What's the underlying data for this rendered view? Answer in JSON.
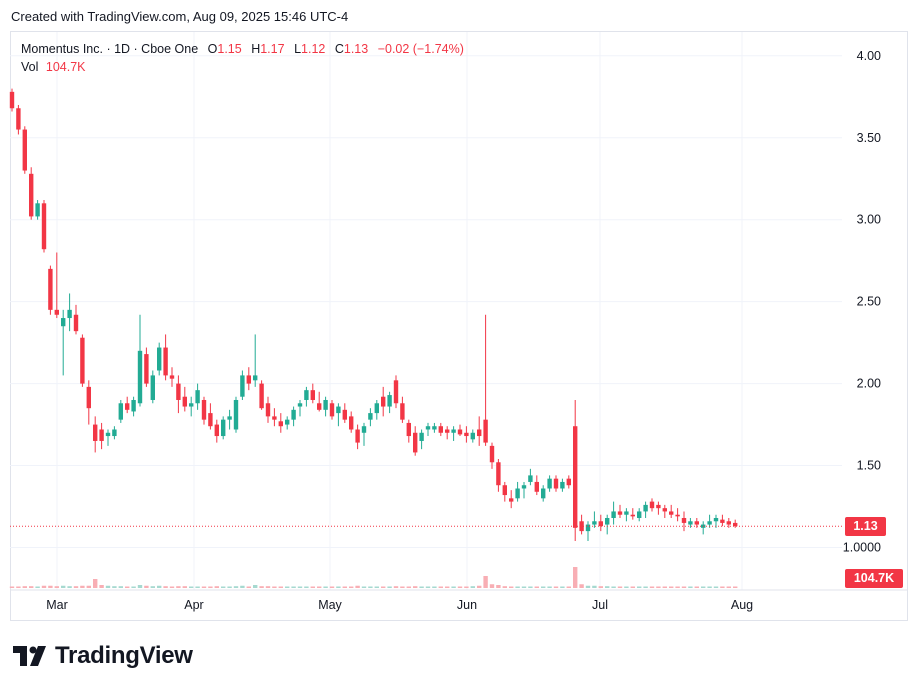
{
  "caption": "Created with TradingView.com, Aug 09, 2025 15:46 UTC-4",
  "legend": {
    "symbol": "Momentus Inc. · 1D · Cboe One",
    "open_label": "O",
    "open": "1.15",
    "high_label": "H",
    "high": "1.17",
    "low_label": "L",
    "low": "1.12",
    "close_label": "C",
    "close": "1.13",
    "change": "−0.02 (−1.74%)",
    "vol_label": "Vol",
    "vol": "104.7K"
  },
  "last_price_tag": "1.13",
  "last_volume_tag": "104.7K",
  "brand": "TradingView",
  "colors": {
    "up": "#22ab94",
    "down": "#f23645",
    "up_vol": "#a6d9d0",
    "down_vol": "#f8aeb4",
    "grid": "#f0f3fa",
    "text": "#131722"
  },
  "chart_data": {
    "type": "candlestick",
    "y_ticks": [
      "4.00",
      "3.50",
      "3.00",
      "2.50",
      "2.00",
      "1.50",
      "1.0000"
    ],
    "y_tick_values": [
      4.0,
      3.5,
      3.0,
      2.5,
      2.0,
      1.5,
      1.0
    ],
    "x_ticks": [
      "Mar",
      "Apr",
      "May",
      "Jun",
      "Jul",
      "Aug"
    ],
    "last_price": 1.13,
    "candles": [
      [
        3.78,
        3.8,
        3.66,
        3.68,
        10
      ],
      [
        3.68,
        3.7,
        3.52,
        3.55,
        10
      ],
      [
        3.55,
        3.57,
        3.28,
        3.3,
        12
      ],
      [
        3.28,
        3.32,
        3.0,
        3.02,
        12
      ],
      [
        3.02,
        3.12,
        3.0,
        3.1,
        10
      ],
      [
        3.1,
        3.12,
        2.8,
        2.82,
        15
      ],
      [
        2.7,
        2.72,
        2.42,
        2.45,
        15
      ],
      [
        2.45,
        2.8,
        2.4,
        2.42,
        12
      ],
      [
        2.35,
        2.45,
        2.05,
        2.4,
        15
      ],
      [
        2.4,
        2.55,
        2.32,
        2.45,
        12
      ],
      [
        2.42,
        2.48,
        2.3,
        2.32,
        12
      ],
      [
        2.28,
        2.3,
        1.98,
        2.0,
        15
      ],
      [
        1.98,
        2.02,
        1.75,
        1.85,
        15
      ],
      [
        1.75,
        1.8,
        1.58,
        1.65,
        60
      ],
      [
        1.72,
        1.76,
        1.6,
        1.65,
        20
      ],
      [
        1.68,
        1.72,
        1.62,
        1.7,
        15
      ],
      [
        1.68,
        1.74,
        1.66,
        1.72,
        12
      ],
      [
        1.78,
        1.9,
        1.76,
        1.88,
        12
      ],
      [
        1.88,
        1.92,
        1.82,
        1.84,
        10
      ],
      [
        1.83,
        1.92,
        1.8,
        1.9,
        10
      ],
      [
        1.88,
        2.42,
        1.86,
        2.2,
        20
      ],
      [
        2.18,
        2.22,
        1.98,
        2.0,
        15
      ],
      [
        1.9,
        2.08,
        1.88,
        2.05,
        12
      ],
      [
        2.08,
        2.25,
        2.05,
        2.22,
        15
      ],
      [
        2.22,
        2.3,
        2.02,
        2.05,
        12
      ],
      [
        2.05,
        2.1,
        1.98,
        2.03,
        10
      ],
      [
        2.0,
        2.05,
        1.82,
        1.9,
        12
      ],
      [
        1.92,
        1.98,
        1.83,
        1.86,
        12
      ],
      [
        1.86,
        1.92,
        1.8,
        1.88,
        10
      ],
      [
        1.88,
        2.0,
        1.84,
        1.96,
        10
      ],
      [
        1.9,
        1.92,
        1.75,
        1.78,
        10
      ],
      [
        1.82,
        1.88,
        1.72,
        1.74,
        10
      ],
      [
        1.75,
        1.78,
        1.64,
        1.68,
        12
      ],
      [
        1.68,
        1.8,
        1.66,
        1.78,
        10
      ],
      [
        1.78,
        1.84,
        1.72,
        1.8,
        10
      ],
      [
        1.72,
        1.92,
        1.7,
        1.9,
        12
      ],
      [
        1.92,
        2.08,
        1.9,
        2.05,
        15
      ],
      [
        2.05,
        2.1,
        1.96,
        2.0,
        10
      ],
      [
        2.02,
        2.3,
        1.98,
        2.05,
        20
      ],
      [
        2.0,
        2.02,
        1.84,
        1.85,
        12
      ],
      [
        1.88,
        1.92,
        1.76,
        1.8,
        12
      ],
      [
        1.8,
        1.85,
        1.74,
        1.78,
        10
      ],
      [
        1.77,
        1.82,
        1.7,
        1.74,
        10
      ],
      [
        1.75,
        1.8,
        1.72,
        1.78,
        10
      ],
      [
        1.78,
        1.86,
        1.74,
        1.84,
        10
      ],
      [
        1.86,
        1.9,
        1.8,
        1.88,
        10
      ],
      [
        1.9,
        1.98,
        1.86,
        1.96,
        10
      ],
      [
        1.96,
        2.0,
        1.88,
        1.9,
        10
      ],
      [
        1.88,
        1.95,
        1.83,
        1.84,
        10
      ],
      [
        1.84,
        1.92,
        1.8,
        1.9,
        10
      ],
      [
        1.88,
        1.9,
        1.78,
        1.8,
        10
      ],
      [
        1.82,
        1.88,
        1.74,
        1.86,
        10
      ],
      [
        1.84,
        1.88,
        1.76,
        1.78,
        10
      ],
      [
        1.8,
        1.83,
        1.7,
        1.72,
        10
      ],
      [
        1.72,
        1.75,
        1.6,
        1.64,
        15
      ],
      [
        1.7,
        1.76,
        1.62,
        1.74,
        10
      ],
      [
        1.78,
        1.85,
        1.74,
        1.82,
        10
      ],
      [
        1.82,
        1.9,
        1.78,
        1.88,
        10
      ],
      [
        1.92,
        1.98,
        1.8,
        1.86,
        10
      ],
      [
        1.86,
        1.95,
        1.82,
        1.93,
        10
      ],
      [
        2.02,
        2.05,
        1.85,
        1.88,
        12
      ],
      [
        1.88,
        1.92,
        1.76,
        1.78,
        10
      ],
      [
        1.76,
        1.78,
        1.64,
        1.68,
        10
      ],
      [
        1.7,
        1.74,
        1.56,
        1.58,
        12
      ],
      [
        1.65,
        1.72,
        1.6,
        1.7,
        10
      ],
      [
        1.72,
        1.76,
        1.68,
        1.74,
        10
      ],
      [
        1.72,
        1.76,
        1.7,
        1.74,
        10
      ],
      [
        1.74,
        1.76,
        1.68,
        1.7,
        10
      ],
      [
        1.72,
        1.74,
        1.66,
        1.7,
        10
      ],
      [
        1.7,
        1.74,
        1.65,
        1.72,
        10
      ],
      [
        1.72,
        1.75,
        1.68,
        1.69,
        10
      ],
      [
        1.7,
        1.74,
        1.64,
        1.68,
        10
      ],
      [
        1.66,
        1.72,
        1.64,
        1.7,
        12
      ],
      [
        1.72,
        1.8,
        1.62,
        1.68,
        15
      ],
      [
        1.78,
        2.42,
        1.62,
        1.64,
        80
      ],
      [
        1.62,
        1.64,
        1.48,
        1.52,
        25
      ],
      [
        1.52,
        1.54,
        1.34,
        1.38,
        20
      ],
      [
        1.38,
        1.4,
        1.28,
        1.32,
        12
      ],
      [
        1.3,
        1.35,
        1.24,
        1.28,
        10
      ],
      [
        1.3,
        1.4,
        1.28,
        1.36,
        10
      ],
      [
        1.36,
        1.4,
        1.3,
        1.38,
        10
      ],
      [
        1.4,
        1.48,
        1.38,
        1.44,
        10
      ],
      [
        1.4,
        1.44,
        1.32,
        1.34,
        10
      ],
      [
        1.3,
        1.38,
        1.28,
        1.36,
        10
      ],
      [
        1.36,
        1.44,
        1.34,
        1.42,
        10
      ],
      [
        1.42,
        1.44,
        1.34,
        1.36,
        10
      ],
      [
        1.36,
        1.42,
        1.34,
        1.4,
        10
      ],
      [
        1.42,
        1.44,
        1.36,
        1.38,
        10
      ],
      [
        1.74,
        1.9,
        1.04,
        1.12,
        140
      ],
      [
        1.16,
        1.2,
        1.08,
        1.1,
        25
      ],
      [
        1.1,
        1.16,
        1.04,
        1.14,
        15
      ],
      [
        1.14,
        1.22,
        1.12,
        1.16,
        15
      ],
      [
        1.16,
        1.2,
        1.1,
        1.13,
        12
      ],
      [
        1.14,
        1.2,
        1.08,
        1.18,
        12
      ],
      [
        1.18,
        1.28,
        1.14,
        1.22,
        10
      ],
      [
        1.22,
        1.26,
        1.18,
        1.2,
        10
      ],
      [
        1.2,
        1.24,
        1.16,
        1.22,
        10
      ],
      [
        1.2,
        1.24,
        1.17,
        1.19,
        10
      ],
      [
        1.18,
        1.24,
        1.16,
        1.22,
        10
      ],
      [
        1.22,
        1.28,
        1.18,
        1.26,
        10
      ],
      [
        1.28,
        1.3,
        1.22,
        1.24,
        10
      ],
      [
        1.26,
        1.28,
        1.2,
        1.24,
        10
      ],
      [
        1.24,
        1.26,
        1.18,
        1.22,
        10
      ],
      [
        1.22,
        1.26,
        1.18,
        1.2,
        10
      ],
      [
        1.2,
        1.24,
        1.16,
        1.19,
        10
      ],
      [
        1.18,
        1.22,
        1.1,
        1.15,
        10
      ],
      [
        1.14,
        1.18,
        1.12,
        1.16,
        10
      ],
      [
        1.16,
        1.18,
        1.12,
        1.14,
        10
      ],
      [
        1.12,
        1.16,
        1.08,
        1.14,
        10
      ],
      [
        1.14,
        1.2,
        1.12,
        1.16,
        10
      ],
      [
        1.16,
        1.2,
        1.12,
        1.18,
        10
      ],
      [
        1.17,
        1.2,
        1.13,
        1.15,
        10
      ],
      [
        1.16,
        1.18,
        1.12,
        1.14,
        10
      ],
      [
        1.15,
        1.17,
        1.12,
        1.13,
        10
      ]
    ]
  }
}
